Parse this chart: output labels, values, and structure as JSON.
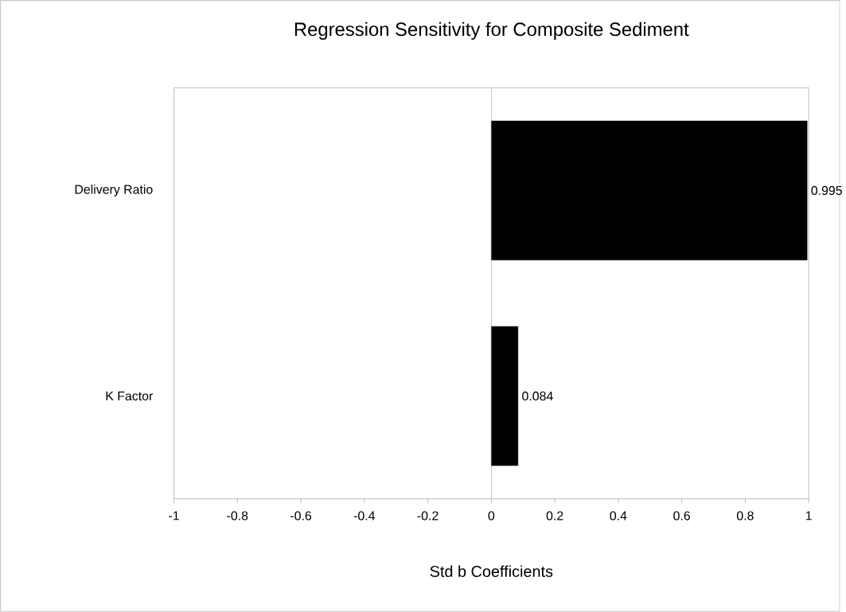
{
  "chart_data": {
    "type": "bar",
    "orientation": "horizontal",
    "title": "Regression Sensitivity for Composite Sediment",
    "xlabel": "Std b Coefficients",
    "categories": [
      "Delivery Ratio",
      "K Factor"
    ],
    "values": [
      0.995,
      0.084
    ],
    "color": "#000000",
    "xlim": [
      -1,
      1
    ],
    "xticks": [
      -1,
      -0.8,
      -0.6,
      -0.4,
      -0.2,
      0,
      0.2,
      0.4,
      0.6,
      0.8,
      1
    ],
    "data_labels": true
  }
}
